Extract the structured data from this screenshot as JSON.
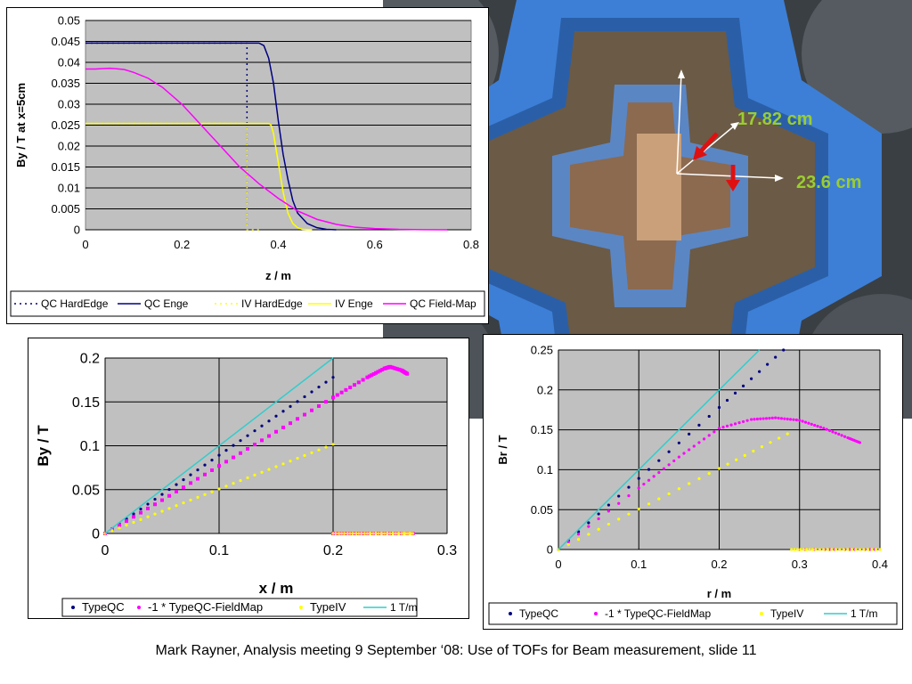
{
  "photo": {
    "label_1": "17.82 cm",
    "label_2": "23.6 cm",
    "label_color": "#9acd32",
    "arrow_color": "#e01010"
  },
  "caption": "Mark Rayner, Analysis meeting 9 September ‘08: Use of TOFs for Beam measurement, slide 11",
  "chart_data": [
    {
      "type": "line",
      "xlabel": "z / m",
      "ylabel": "By / T at x=5cm",
      "xlim": [
        0,
        0.8
      ],
      "ylim": [
        0,
        0.05
      ],
      "xticks": [
        "0",
        "0.2",
        "0.4",
        "0.6",
        "0.8"
      ],
      "yticks": [
        "0",
        "0.005",
        "0.01",
        "0.015",
        "0.02",
        "0.025",
        "0.03",
        "0.035",
        "0.04",
        "0.045",
        "0.05"
      ],
      "grid": true,
      "legend": "bottom",
      "series": [
        {
          "name": "QC HardEdge",
          "color": "#000080",
          "dash": "dot",
          "x": [
            0,
            0.335,
            0.335,
            0.36
          ],
          "y": [
            0.0446,
            0.0446,
            0,
            0
          ]
        },
        {
          "name": "QC Enge",
          "color": "#000080",
          "dash": "solid",
          "x": [
            0,
            0.36,
            0.37,
            0.38,
            0.39,
            0.4,
            0.41,
            0.42,
            0.43,
            0.44,
            0.46,
            0.48,
            0.5,
            0.52
          ],
          "y": [
            0.0446,
            0.0446,
            0.044,
            0.041,
            0.035,
            0.026,
            0.018,
            0.012,
            0.007,
            0.004,
            0.0015,
            0.0005,
            0.0001,
            0
          ]
        },
        {
          "name": "IV HardEdge",
          "color": "#ffff00",
          "dash": "dot",
          "x": [
            0,
            0.335,
            0.335,
            0.36
          ],
          "y": [
            0.0254,
            0.0254,
            0,
            0
          ]
        },
        {
          "name": "IV Enge",
          "color": "#ffff00",
          "dash": "solid",
          "x": [
            0,
            0.38,
            0.385,
            0.39,
            0.4,
            0.41,
            0.42,
            0.43,
            0.44,
            0.45,
            0.47
          ],
          "y": [
            0.0254,
            0.0254,
            0.025,
            0.023,
            0.016,
            0.009,
            0.004,
            0.0015,
            0.0005,
            0.0001,
            0
          ]
        },
        {
          "name": "QC Field-Map",
          "color": "#ff00ff",
          "dash": "solid",
          "x": [
            0,
            0.02,
            0.05,
            0.08,
            0.1,
            0.13,
            0.16,
            0.2,
            0.24,
            0.28,
            0.32,
            0.36,
            0.4,
            0.44,
            0.48,
            0.52,
            0.56,
            0.6,
            0.65,
            0.7,
            0.75
          ],
          "y": [
            0.0384,
            0.0384,
            0.0386,
            0.0383,
            0.0376,
            0.0362,
            0.034,
            0.03,
            0.025,
            0.02,
            0.015,
            0.011,
            0.0075,
            0.0045,
            0.0025,
            0.0013,
            0.0006,
            0.0003,
            0.0001,
            3e-05,
            0
          ]
        }
      ]
    },
    {
      "type": "scatter",
      "xlabel": "x / m",
      "ylabel": "By / T",
      "xlim": [
        0,
        0.3
      ],
      "ylim": [
        0,
        0.2
      ],
      "xticks": [
        "0",
        "0.1",
        "0.2",
        "0.3"
      ],
      "yticks": [
        "0",
        "0.05",
        "0.1",
        "0.15",
        "0.2"
      ],
      "grid": true,
      "legend": "bottom",
      "series": [
        {
          "name": "TypeQC",
          "color": "#000080",
          "style": "dots",
          "x": [
            0,
            0.05,
            0.1,
            0.15,
            0.2
          ],
          "y": [
            0,
            0.0446,
            0.0892,
            0.1338,
            0.178
          ]
        },
        {
          "name": "-1 * TypeQC-FieldMap",
          "color": "#ff00ff",
          "style": "squares",
          "x": [
            0,
            0.05,
            0.1,
            0.15,
            0.2,
            0.23,
            0.245,
            0.25,
            0.26,
            0.265,
            0.2,
            0.23,
            0.27
          ],
          "y": [
            0,
            0.038,
            0.077,
            0.116,
            0.155,
            0.178,
            0.188,
            0.19,
            0.186,
            0.182,
            0,
            0,
            0
          ]
        },
        {
          "name": "TypeIV",
          "color": "#ffff00",
          "style": "dots",
          "x": [
            0,
            0.05,
            0.1,
            0.15,
            0.2,
            0.2,
            0.22,
            0.24,
            0.26,
            0.27
          ],
          "y": [
            0,
            0.0254,
            0.0508,
            0.0762,
            0.1016,
            0,
            0,
            0,
            0,
            0
          ]
        },
        {
          "name": "1 T/m",
          "color": "#33cccc",
          "style": "line",
          "x": [
            0,
            0.2
          ],
          "y": [
            0,
            0.2
          ]
        }
      ]
    },
    {
      "type": "scatter",
      "xlabel": "r / m",
      "ylabel": "Br / T",
      "xlim": [
        0,
        0.4
      ],
      "ylim": [
        0,
        0.25
      ],
      "xticks": [
        "0",
        "0.1",
        "0.2",
        "0.3",
        "0.4"
      ],
      "yticks": [
        "0",
        "0.05",
        "0.1",
        "0.15",
        "0.2",
        "0.25"
      ],
      "grid": true,
      "legend": "bottom",
      "series": [
        {
          "name": "TypeQC",
          "color": "#000080",
          "style": "dots",
          "x": [
            0,
            0.1,
            0.2,
            0.28
          ],
          "y": [
            0,
            0.0892,
            0.178,
            0.25
          ]
        },
        {
          "name": "-1 * TypeQC-FieldMap",
          "color": "#ff00ff",
          "style": "dots",
          "x": [
            0,
            0.1,
            0.15,
            0.2,
            0.24,
            0.27,
            0.3,
            0.33,
            0.36,
            0.375,
            0.3,
            0.35,
            0.4
          ],
          "y": [
            0,
            0.077,
            0.116,
            0.152,
            0.163,
            0.165,
            0.162,
            0.152,
            0.14,
            0.134,
            0,
            0,
            0
          ]
        },
        {
          "name": "TypeIV",
          "color": "#ffff00",
          "style": "dots",
          "x": [
            0,
            0.1,
            0.2,
            0.285,
            0.29,
            0.32,
            0.36,
            0.4
          ],
          "y": [
            0,
            0.0508,
            0.1016,
            0.145,
            0,
            0,
            0,
            0
          ]
        },
        {
          "name": "1 T/m",
          "color": "#33cccc",
          "style": "line",
          "x": [
            0,
            0.25
          ],
          "y": [
            0,
            0.25
          ]
        }
      ]
    }
  ]
}
